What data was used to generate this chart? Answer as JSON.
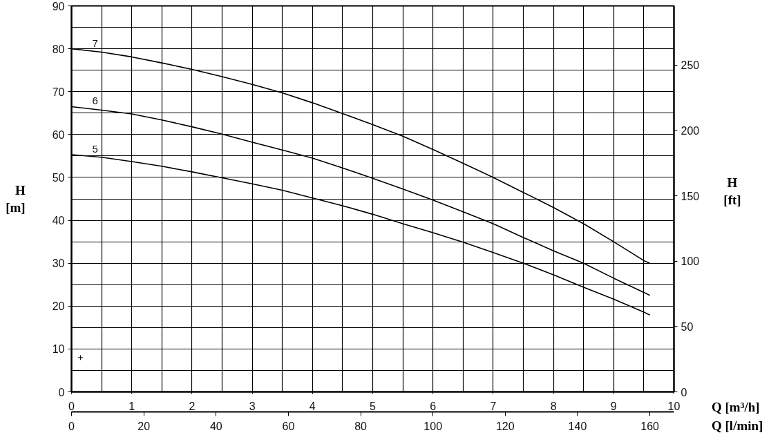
{
  "chart_data": {
    "type": "line",
    "xlabel": "Q [m³/h]",
    "x2label": "Q [l/min]",
    "ylabel": "H [m]",
    "y2label": "H [ft]",
    "x": [
      0,
      0.5,
      1,
      1.5,
      2,
      2.5,
      3,
      3.5,
      4,
      4.5,
      5,
      5.5,
      6,
      6.5,
      7,
      7.5,
      8,
      8.5,
      9,
      9.5,
      9.6
    ],
    "xlim": [
      0,
      10
    ],
    "xticks": [
      0,
      1,
      2,
      3,
      4,
      5,
      6,
      7,
      8,
      9,
      10
    ],
    "x2lim": [
      0,
      166.67
    ],
    "x2ticks": [
      0,
      20,
      40,
      60,
      80,
      100,
      120,
      140,
      160
    ],
    "ylim": [
      0,
      90
    ],
    "yticks": [
      0,
      10,
      20,
      30,
      40,
      50,
      60,
      70,
      80,
      90
    ],
    "y2lim": [
      0,
      295.3
    ],
    "y2ticks": [
      0,
      50,
      100,
      150,
      200,
      250
    ],
    "grid": true,
    "marker": "none",
    "line_style": "solid",
    "series": [
      {
        "name": "7",
        "color": "#000000",
        "values": [
          80.0,
          79.2,
          78.1,
          76.7,
          75.2,
          73.5,
          71.7,
          69.7,
          67.4,
          64.9,
          62.3,
          59.6,
          56.5,
          53.3,
          50.0,
          46.5,
          43.0,
          39.2,
          35.0,
          30.6,
          30.0
        ]
      },
      {
        "name": "6",
        "color": "#000000",
        "values": [
          66.5,
          65.7,
          64.8,
          63.4,
          61.8,
          60.1,
          58.2,
          56.4,
          54.5,
          52.2,
          49.8,
          47.3,
          44.7,
          42.0,
          39.2,
          36.0,
          32.9,
          30.0,
          26.5,
          23.2,
          22.5
        ]
      },
      {
        "name": "5",
        "color": "#000000",
        "values": [
          55.3,
          54.7,
          53.7,
          52.6,
          51.3,
          49.9,
          48.5,
          47.0,
          45.2,
          43.4,
          41.4,
          39.2,
          37.1,
          34.9,
          32.5,
          30.0,
          27.3,
          24.4,
          21.6,
          18.6,
          17.9
        ]
      },
      {
        "type": "scatter",
        "marker": "cross",
        "color": "#000000",
        "x": [
          0.15
        ],
        "values": [
          8
        ]
      }
    ]
  }
}
